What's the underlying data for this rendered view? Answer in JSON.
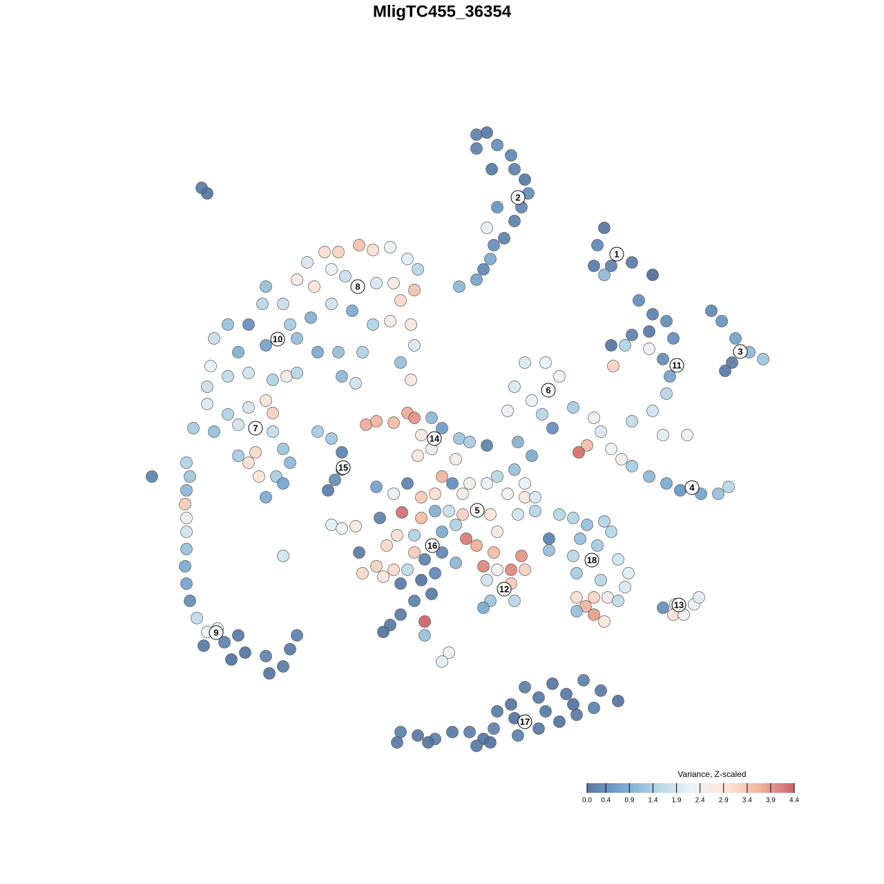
{
  "chart_data": {
    "type": "scatter",
    "title": "MligTC455_36354",
    "colorbar_label": "Variance, Z-scaled",
    "xlim": [
      0,
      1280
    ],
    "ylim": [
      1280,
      0
    ],
    "clim": [
      0,
      4.4
    ],
    "cticks": [
      {
        "value": 0,
        "label": "0.0"
      },
      0.4,
      0.9,
      1.4,
      1.9,
      2.4,
      2.9,
      3.4,
      3.9,
      4.4
    ],
    "colors": [
      "#4b6a98",
      "#6a9bc9",
      "#a9cfe2",
      "#e8f1f6",
      "#fbe3d6",
      "#f0ac94",
      "#c9515f"
    ],
    "x": [
      690,
      705,
      690,
      720,
      740,
      745,
      760,
      765,
      755,
      745,
      720,
      730,
      715,
      710,
      700,
      690,
      665,
      705,
      712,
      875,
      865,
      885,
      860,
      875,
      915,
      945,
      925,
      945,
      965,
      940,
      915,
      885,
      905,
      940,
      960,
      970,
      965,
      945,
      915,
      960,
      995,
      888,
      975,
      1030,
      1045,
      1065,
      1085,
      1105,
      1060,
      1050,
      760,
      790,
      810,
      745,
      770,
      735,
      785,
      800,
      830,
      750,
      770,
      860,
      870,
      885,
      900,
      850,
      838,
      915,
      940,
      965,
      985,
      1015,
      1040,
      1055,
      470,
      490,
      520,
      540,
      565,
      590,
      605,
      600,
      580,
      445,
      430,
      455,
      480,
      500,
      545,
      570,
      385,
      380,
      360,
      410,
      420,
      450,
      480,
      510,
      540,
      565,
      595,
      600,
      580,
      595,
      330,
      310,
      345,
      385,
      430,
      460,
      490,
      525,
      305,
      330,
      360,
      395,
      415,
      430,
      300,
      300,
      330,
      360,
      385,
      395,
      280,
      310,
      345,
      370,
      360,
      375,
      345,
      395,
      410,
      420,
      400,
      385,
      410,
      495,
      515,
      270,
      275,
      270,
      268,
      270,
      270,
      270,
      268,
      270,
      275,
      285,
      300,
      315,
      295,
      325,
      345,
      335,
      355,
      385,
      390,
      410,
      420,
      430,
      460,
      480,
      495,
      495,
      485,
      475,
      292,
      300,
      220,
      410,
      480,
      495,
      515,
      530,
      545,
      570,
      590,
      600,
      625,
      610,
      625,
      605,
      640,
      665,
      680,
      705,
      660,
      545,
      570,
      590,
      610,
      630,
      640,
      655,
      670,
      680,
      705,
      720,
      745,
      760,
      735,
      760,
      775,
      750,
      775,
      710,
      670,
      650,
      630,
      610,
      582,
      550,
      600,
      575,
      560,
      640,
      660,
      675,
      690,
      715,
      700,
      720,
      740,
      755,
      760,
      740,
      705,
      710,
      745,
      700,
      660,
      640,
      615,
      600,
      590,
      520,
      525,
      545,
      570,
      555,
      580,
      610,
      630,
      625,
      600,
      580,
      565,
      555,
      615,
      615,
      650,
      640,
      795,
      795,
      720,
      810,
      830,
      850,
      875,
      885,
      840,
      865,
      830,
      895,
      910,
      835,
      870,
      905,
      880,
      860,
      835,
      848,
      835,
      860,
      875,
      895,
      960,
      978,
      975,
      990,
      1005,
      1012,
      580,
      605,
      630,
      655,
      680,
      700,
      715,
      720,
      740,
      760,
      780,
      800,
      820,
      845,
      870,
      895,
      860,
      835,
      810,
      780,
      750,
      745,
      790,
      830,
      575,
      620,
      690,
      710
    ],
    "values": [
      195,
      192,
      215,
      210,
      225,
      245,
      260,
      280,
      300,
      320,
      300,
      345,
      355,
      375,
      390,
      405,
      415,
      330,
      245,
      330,
      355,
      385,
      385,
      398,
      380,
      398,
      435,
      455,
      465,
      480,
      485,
      500,
      500,
      505,
      520,
      545,
      570,
      595,
      610,
      630,
      630,
      530,
      490,
      450,
      465,
      490,
      510,
      520,
      525,
      537,
      525,
      525,
      545,
      560,
      580,
      595,
      600,
      620,
      590,
      640,
      660,
      605,
      625,
      650,
      665,
      645,
      655,
      675,
      690,
      700,
      710,
      715,
      715,
      705,
      365,
      365,
      355,
      362,
      358,
      375,
      390,
      420,
      435,
      380,
      405,
      415,
      390,
      400,
      410,
      410,
      415,
      440,
      470,
      440,
      470,
      460,
      440,
      450,
      470,
      465,
      470,
      500,
      525,
      550,
      470,
      490,
      510,
      500,
      490,
      510,
      510,
      510,
      530,
      545,
      540,
      550,
      545,
      540,
      560,
      585,
      600,
      590,
      580,
      598,
      620,
      625,
      615,
      655,
      670,
      690,
      660,
      625,
      650,
      670,
      690,
      720,
      700,
      545,
      555,
      670,
      690,
      710,
      730,
      750,
      770,
      795,
      820,
      845,
      870,
      895,
      915,
      910,
      935,
      930,
      920,
      955,
      945,
      950,
      975,
      965,
      940,
      920,
      625,
      635,
      655,
      680,
      695,
      710,
      272,
      280,
      690,
      805,
      760,
      765,
      762,
      615,
      610,
      612,
      598,
      605,
      605,
      630,
      650,
      660,
      620,
      635,
      640,
      645,
      665,
      705,
      715,
      700,
      720,
      715,
      690,
      700,
      715,
      700,
      700,
      690,
      680,
      700,
      715,
      720,
      720,
      745,
      740,
      745,
      745,
      740,
      740,
      750,
      742,
      750,
      775,
      775,
      790,
      770,
      760,
      780,
      790,
      800,
      820,
      825,
      825,
      805,
      825,
      845,
      840,
      870,
      870,
      880,
      815,
      800,
      810,
      800,
      825,
      800,
      830,
      820,
      825,
      835,
      845,
      840,
      830,
      860,
      870,
      890,
      905,
      915,
      900,
      920,
      945,
      958,
      780,
      797,
      770,
      745,
      750,
      760,
      755,
      770,
      780,
      790,
      805,
      810,
      830,
      830,
      840,
      850,
      865,
      865,
      865,
      878,
      885,
      890,
      900,
      870,
      880,
      875,
      890,
      890,
      875,
      865,
      1060,
      1065,
      1070,
      1060,
      1060,
      1070,
      1055,
      1030,
      1020,
      995,
      1010,
      990,
      1005,
      985,
      1000,
      1015,
      1025,
      1035,
      1045,
      1055,
      1065,
      1040,
      1030,
      1020,
      1075,
      1075,
      1080,
      1075
    ],
    "z": [
      0.3,
      0.2,
      0.3,
      0.5,
      0.4,
      0.3,
      0.2,
      0.5,
      0.4,
      0.3,
      0.6,
      0.3,
      0.5,
      0.9,
      0.4,
      0.8,
      1.1,
      2.3,
      0.2,
      0.1,
      0.4,
      0.3,
      0.2,
      1.1,
      0.2,
      0.0,
      0.5,
      0.3,
      0.5,
      0.2,
      0.3,
      0.1,
      1.5,
      2.2,
      0.5,
      0.8,
      1.6,
      1.9,
      1.7,
      2.1,
      2.3,
      3.2,
      0.5,
      0.4,
      0.6,
      0.8,
      1.1,
      1.3,
      0.2,
      0.2,
      2.0,
      2.2,
      2.3,
      2.0,
      2.2,
      2.3,
      1.6,
      0.5,
      1.4,
      1.0,
      0.9,
      2.3,
      2.0,
      2.3,
      2.5,
      3.5,
      4.2,
      1.4,
      1.1,
      0.9,
      0.6,
      0.8,
      1.2,
      1.6,
      3.0,
      3.2,
      3.4,
      3.0,
      2.3,
      2.1,
      1.6,
      3.4,
      3.1,
      2.0,
      2.6,
      2.9,
      2.2,
      1.8,
      2.0,
      2.7,
      1.2,
      1.6,
      0.5,
      1.8,
      1.4,
      1.0,
      1.9,
      0.9,
      1.5,
      2.6,
      2.8,
      2.0,
      1.2,
      2.8,
      1.2,
      1.8,
      1.0,
      0.8,
      1.2,
      0.9,
      1.2,
      1.5,
      2.2,
      1.7,
      1.9,
      1.5,
      2.6,
      1.6,
      1.8,
      2.0,
      1.5,
      1.9,
      2.9,
      3.2,
      1.4,
      1.2,
      1.9,
      3.1,
      3.0,
      2.9,
      1.4,
      1.7,
      1.3,
      1.1,
      1.4,
      0.9,
      0.8,
      1.1,
      1.9,
      1.5,
      1.3,
      1.1,
      3.3,
      2.4,
      1.9,
      1.2,
      0.9,
      0.8,
      0.5,
      1.7,
      2.2,
      2.3,
      0.2,
      0.3,
      0.2,
      0.1,
      0.1,
      0.3,
      0.1,
      0.2,
      0.2,
      0.3,
      1.4,
      1.3,
      0.3,
      0.2,
      0.5,
      0.2,
      0.2,
      0.1,
      0.3,
      1.9,
      2.1,
      2.3,
      2.7,
      3.7,
      3.6,
      3.5,
      3.7,
      3.9,
      1.1,
      2.7,
      2.5,
      2.9,
      0.7,
      1.3,
      1.4,
      0.3,
      2.5,
      0.8,
      2.3,
      0.3,
      3.3,
      3.0,
      3.6,
      0.5,
      2.6,
      2.5,
      2.2,
      1.6,
      1.2,
      2.2,
      2.4,
      2.8,
      2.0,
      1.9,
      1.6,
      2.9,
      3.2,
      1.8,
      1.0,
      3.5,
      4.2,
      0.3,
      1.5,
      3.0,
      3.1,
      0.9,
      1.5,
      4.1,
      3.7,
      3.5,
      4.0,
      2.4,
      4.0,
      3.9,
      3.2,
      3.3,
      1.9,
      1.3,
      1.6,
      0.9,
      1.1,
      0.4,
      0.3,
      3.3,
      1.7,
      0.2,
      3.1,
      3.2,
      3.1,
      2.9,
      0.2,
      0.1,
      0.4,
      0.2,
      0.3,
      0.2,
      0.2,
      0.1,
      4.3,
      1.2,
      2.3,
      2.1,
      0.3,
      1.2,
      2.7,
      1.6,
      1.5,
      1.2,
      1.5,
      1.6,
      1.2,
      1.4,
      1.6,
      1.9,
      2.1,
      1.4,
      1.6,
      2.0,
      2.5,
      3.2,
      3.0,
      3.6,
      1.2,
      3.8,
      2.9,
      1.7,
      0.5,
      2.2,
      3.0,
      2.4,
      2.3,
      2.1,
      0.3,
      0.2,
      0.3,
      0.2,
      0.3,
      0.1,
      0.3,
      0.2,
      0.1,
      0.3,
      0.2,
      0.1,
      0.2,
      0.3,
      0.2,
      0.1,
      0.3,
      0.2,
      0.1,
      0.2,
      0.3,
      0.1,
      0.2,
      0.1,
      0.2,
      0.1,
      0.2,
      0.1
    ],
    "clusters": [
      {
        "label": "1",
        "x": 893,
        "y": 368
      },
      {
        "label": "2",
        "x": 750,
        "y": 286
      },
      {
        "label": "3",
        "x": 1072,
        "y": 509
      },
      {
        "label": "4",
        "x": 1002,
        "y": 706
      },
      {
        "label": "5",
        "x": 691,
        "y": 739
      },
      {
        "label": "6",
        "x": 794,
        "y": 565
      },
      {
        "label": "7",
        "x": 370,
        "y": 620
      },
      {
        "label": "8",
        "x": 518,
        "y": 415
      },
      {
        "label": "9",
        "x": 313,
        "y": 916
      },
      {
        "label": "10",
        "x": 402,
        "y": 491
      },
      {
        "label": "11",
        "x": 980,
        "y": 529
      },
      {
        "label": "12",
        "x": 730,
        "y": 853
      },
      {
        "label": "13",
        "x": 983,
        "y": 876
      },
      {
        "label": "14",
        "x": 629,
        "y": 635
      },
      {
        "label": "15",
        "x": 497,
        "y": 677
      },
      {
        "label": "16",
        "x": 626,
        "y": 790
      },
      {
        "label": "17",
        "x": 760,
        "y": 1045
      },
      {
        "label": "18",
        "x": 857,
        "y": 811
      }
    ]
  }
}
